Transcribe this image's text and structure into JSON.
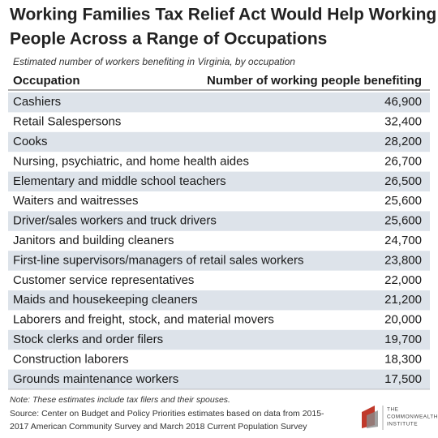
{
  "header": {
    "title_lines": [
      "Working Families Tax Relief Act Would Help Working",
      "People Across a Range of Occupations"
    ],
    "subtitle": "Estimated number of workers benefiting in Virginia, by occupation"
  },
  "table": {
    "columns": [
      "Occupation",
      "Number of working people benefiting"
    ],
    "rows": [
      [
        "Cashiers",
        "46,900"
      ],
      [
        "Retail Salespersons",
        "32,400"
      ],
      [
        "Cooks",
        "28,200"
      ],
      [
        "Nursing, psychiatric, and home health aides",
        "26,700"
      ],
      [
        "Elementary and middle school teachers",
        "26,500"
      ],
      [
        "Waiters and waitresses",
        "25,600"
      ],
      [
        "Driver/sales workers and truck drivers",
        "25,600"
      ],
      [
        "Janitors and building cleaners",
        "24,700"
      ],
      [
        "First-line supervisors/managers of retail sales workers",
        "23,800"
      ],
      [
        "Customer service representatives",
        "22,000"
      ],
      [
        "Maids and housekeeping cleaners",
        "21,200"
      ],
      [
        "Laborers and freight, stock, and material movers",
        "20,000"
      ],
      [
        "Stock clerks and order filers",
        "19,700"
      ],
      [
        "Construction laborers",
        "18,300"
      ],
      [
        "Grounds maintenance workers",
        "17,500"
      ]
    ]
  },
  "footer": {
    "note": "Note: These estimates include tax filers and their spouses.",
    "source_lines": [
      "Source: Center on Budget and Policy Priorities estimates based on data from 2015-",
      "2017 American Community Survey and March 2018 Current Population Survey"
    ]
  },
  "logo": {
    "lines": [
      "The",
      "Commonwealth",
      "Institute"
    ]
  }
}
